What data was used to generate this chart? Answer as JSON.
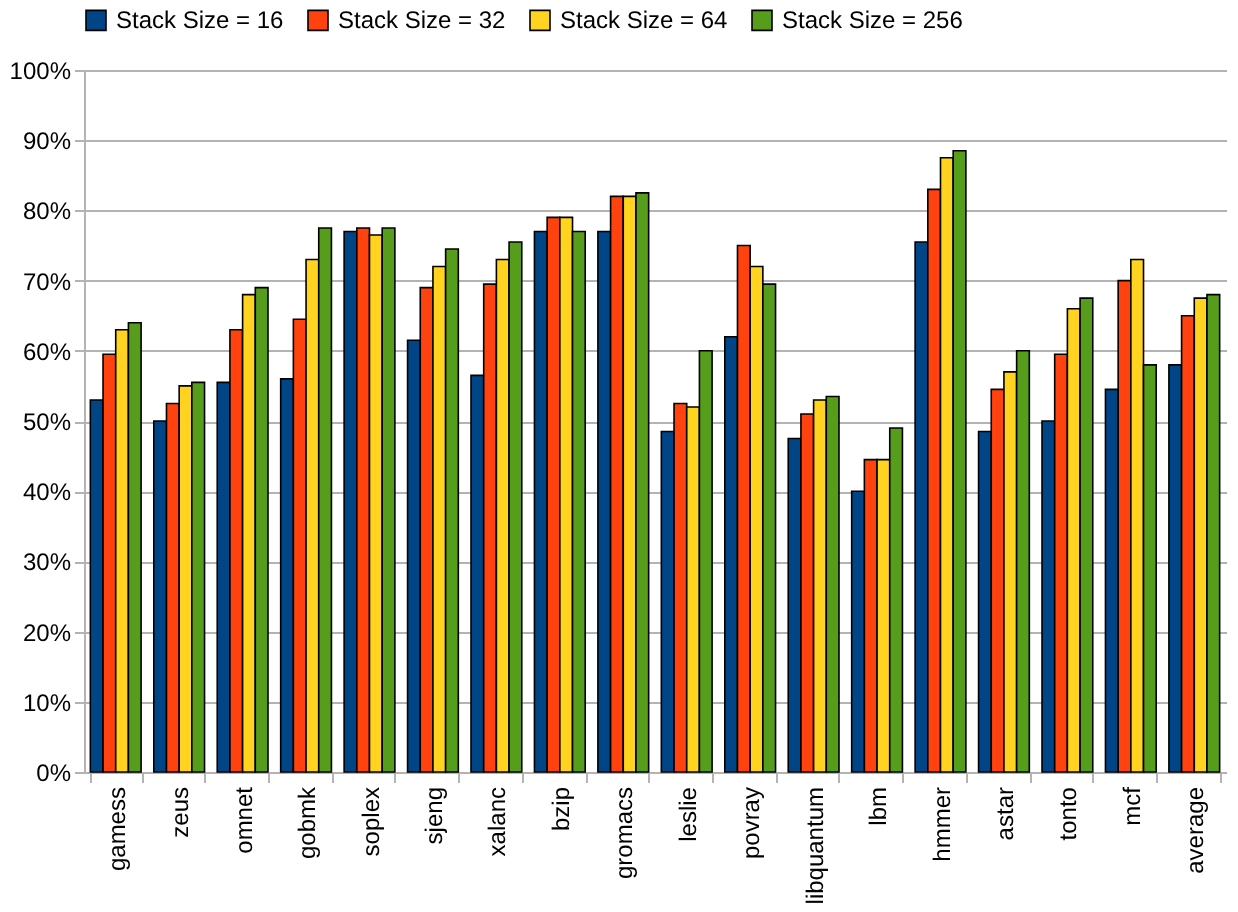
{
  "chart_data": {
    "type": "bar",
    "categories": [
      "gamess",
      "zeus",
      "omnet",
      "gobmk",
      "soplex",
      "sjeng",
      "xalanc",
      "bzip",
      "gromacs",
      "leslie",
      "povray",
      "libquantum",
      "lbm",
      "hmmer",
      "astar",
      "tonto",
      "mcf",
      "average"
    ],
    "series": [
      {
        "name": "Stack Size = 16",
        "color": "#004586",
        "values": [
          53,
          50,
          55.5,
          56,
          77,
          61.5,
          56.5,
          77,
          77,
          48.5,
          62,
          47.5,
          40,
          75.5,
          48.5,
          50,
          54.5,
          58
        ]
      },
      {
        "name": "Stack Size = 32",
        "color": "#ff420e",
        "values": [
          59.5,
          52.5,
          63,
          64.5,
          77.5,
          69,
          69.5,
          79,
          82,
          52.5,
          75,
          51,
          44.5,
          83,
          54.5,
          59.5,
          70,
          65
        ]
      },
      {
        "name": "Stack Size = 64",
        "color": "#ffd320",
        "values": [
          63,
          55,
          68,
          73,
          76.5,
          72,
          73,
          79,
          82,
          52,
          72,
          53,
          44.5,
          87.5,
          57,
          66,
          73,
          67.5
        ]
      },
      {
        "name": "Stack Size = 256",
        "color": "#579d1c",
        "values": [
          64,
          55.5,
          69,
          77.5,
          77.5,
          74.5,
          75.5,
          77,
          82.5,
          60,
          69.5,
          53.5,
          49,
          88.5,
          60,
          67.5,
          58,
          68
        ]
      }
    ],
    "ylim": [
      0,
      100
    ],
    "yticks": [
      {
        "value": 0,
        "label": "0%"
      },
      {
        "value": 10,
        "label": "10%"
      },
      {
        "value": 20,
        "label": "20%"
      },
      {
        "value": 30,
        "label": "30%"
      },
      {
        "value": 40,
        "label": "40%"
      },
      {
        "value": 50,
        "label": "50%"
      },
      {
        "value": 60,
        "label": "60%"
      },
      {
        "value": 70,
        "label": "70%"
      },
      {
        "value": 80,
        "label": "80%"
      },
      {
        "value": 90,
        "label": "90%"
      },
      {
        "value": 100,
        "label": "100%"
      }
    ],
    "grid": "y",
    "legend": "top"
  }
}
